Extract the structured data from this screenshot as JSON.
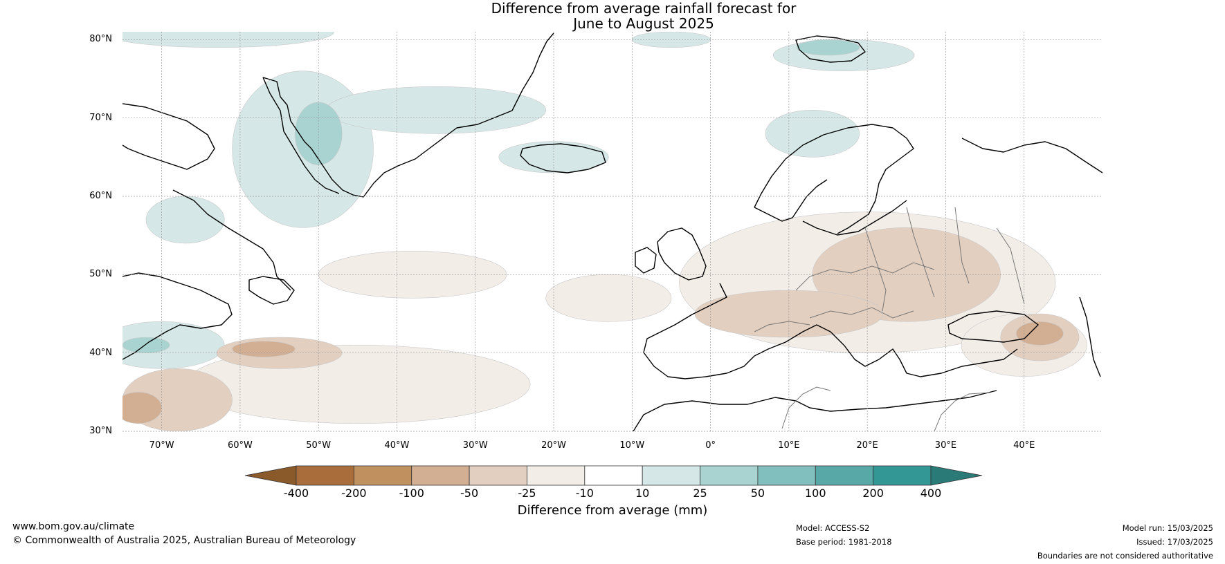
{
  "title": {
    "line1": "Difference from average rainfall forecast for",
    "line2": "June to August 2025"
  },
  "map": {
    "lon_range": [
      -75,
      50
    ],
    "lat_range": [
      30,
      81
    ],
    "latitude_labels": [
      {
        "lat": 80,
        "label": "80°N"
      },
      {
        "lat": 70,
        "label": "70°N"
      },
      {
        "lat": 60,
        "label": "60°N"
      },
      {
        "lat": 50,
        "label": "50°N"
      },
      {
        "lat": 40,
        "label": "40°N"
      },
      {
        "lat": 30,
        "label": "30°N"
      }
    ],
    "longitude_labels": [
      {
        "lon": -70,
        "label": "70°W"
      },
      {
        "lon": -60,
        "label": "60°W"
      },
      {
        "lon": -50,
        "label": "50°W"
      },
      {
        "lon": -40,
        "label": "40°W"
      },
      {
        "lon": -30,
        "label": "30°W"
      },
      {
        "lon": -20,
        "label": "20°W"
      },
      {
        "lon": -10,
        "label": "10°W"
      },
      {
        "lon": 0,
        "label": "0°"
      },
      {
        "lon": 10,
        "label": "10°E"
      },
      {
        "lon": 20,
        "label": "20°E"
      },
      {
        "lon": 30,
        "label": "30°E"
      },
      {
        "lon": 40,
        "label": "40°E"
      }
    ],
    "gridlines": true,
    "regions": [
      {
        "level": "10-25",
        "color": "#d5e8e7",
        "lon": -52,
        "lat": 66,
        "rlon": 9,
        "rlat": 10
      },
      {
        "level": "10-25",
        "color": "#d5e8e7",
        "lon": -35,
        "lat": 71,
        "rlon": 14,
        "rlat": 3
      },
      {
        "level": "10-25",
        "color": "#d5e8e7",
        "lon": -20,
        "lat": 65,
        "rlon": 7,
        "rlat": 2
      },
      {
        "level": "10-25",
        "color": "#d5e8e7",
        "lon": -67,
        "lat": 57,
        "rlon": 5,
        "rlat": 3
      },
      {
        "level": "10-25",
        "color": "#d5e8e7",
        "lon": -70,
        "lat": 41,
        "rlon": 8,
        "rlat": 3
      },
      {
        "level": "10-25",
        "color": "#d5e8e7",
        "lon": 17,
        "lat": 78,
        "rlon": 9,
        "rlat": 2
      },
      {
        "level": "10-25",
        "color": "#d5e8e7",
        "lon": 13,
        "lat": 68,
        "rlon": 6,
        "rlat": 3
      },
      {
        "level": "10-25",
        "color": "#d5e8e7",
        "lon": -63,
        "lat": 81,
        "rlon": 15,
        "rlat": 2
      },
      {
        "level": "10-25",
        "color": "#d5e8e7",
        "lon": -5,
        "lat": 80,
        "rlon": 5,
        "rlat": 1
      },
      {
        "level": "25-50",
        "color": "#a8d3d1",
        "lon": -50,
        "lat": 68,
        "rlon": 3,
        "rlat": 4
      },
      {
        "level": "25-50",
        "color": "#a8d3d1",
        "lon": 15,
        "lat": 79,
        "rlon": 4,
        "rlat": 1
      },
      {
        "level": "25-50",
        "color": "#a8d3d1",
        "lon": -72,
        "lat": 41,
        "rlon": 3,
        "rlat": 1
      },
      {
        "level": "-25--10",
        "color": "#f3ede8",
        "lon": 20,
        "lat": 49,
        "rlon": 24,
        "rlat": 9
      },
      {
        "level": "-25--10",
        "color": "#f3ede8",
        "lon": -38,
        "lat": 50,
        "rlon": 12,
        "rlat": 3
      },
      {
        "level": "-25--10",
        "color": "#f3ede8",
        "lon": -13,
        "lat": 47,
        "rlon": 8,
        "rlat": 3
      },
      {
        "level": "-25--10",
        "color": "#f3ede8",
        "lon": -45,
        "lat": 36,
        "rlon": 22,
        "rlat": 5
      },
      {
        "level": "-25--10",
        "color": "#f3ede8",
        "lon": 40,
        "lat": 41,
        "rlon": 8,
        "rlat": 4
      },
      {
        "level": "-50--25",
        "color": "#e3cfc0",
        "lon": 25,
        "lat": 50,
        "rlon": 12,
        "rlat": 6
      },
      {
        "level": "-50--25",
        "color": "#e3cfc0",
        "lon": 10,
        "lat": 45,
        "rlon": 12,
        "rlat": 3
      },
      {
        "level": "-50--25",
        "color": "#e3cfc0",
        "lon": -55,
        "lat": 40,
        "rlon": 8,
        "rlat": 2
      },
      {
        "level": "-50--25",
        "color": "#e3cfc0",
        "lon": -68,
        "lat": 34,
        "rlon": 7,
        "rlat": 4
      },
      {
        "level": "-50--25",
        "color": "#e3cfc0",
        "lon": 42,
        "lat": 42,
        "rlon": 5,
        "rlat": 3
      },
      {
        "level": "-100--50",
        "color": "#d2ae93",
        "lon": -57,
        "lat": 40.5,
        "rlon": 4,
        "rlat": 1
      },
      {
        "level": "-100--50",
        "color": "#d2ae93",
        "lon": 42,
        "lat": 42.5,
        "rlon": 3,
        "rlat": 1.5
      },
      {
        "level": "-100--50",
        "color": "#d2ae93",
        "lon": -73,
        "lat": 33,
        "rlon": 3,
        "rlat": 2
      }
    ]
  },
  "colorbar": {
    "labels": [
      "-400",
      "-200",
      "-100",
      "-50",
      "-25",
      "-10",
      "10",
      "25",
      "50",
      "100",
      "200",
      "400"
    ],
    "colors": [
      "#a86d3a",
      "#c1905f",
      "#d2ae93",
      "#e3cfc0",
      "#f3ede8",
      "#ffffff",
      "#d5e8e7",
      "#a8d3d1",
      "#80bfbd",
      "#59a8a8",
      "#339795"
    ],
    "under_color": "#8a5a2b",
    "over_color": "#2a7a78",
    "title": "Difference from average (mm)"
  },
  "footer": {
    "website": "www.bom.gov.au/climate",
    "copyright": "© Commonwealth of Australia 2025, Australian Bureau of Meteorology",
    "model": "Model: ACCESS-S2",
    "base_period": "Base period: 1981-2018",
    "model_run": "Model run: 15/03/2025",
    "issued": "Issued: 17/03/2025",
    "disclaimer": "Boundaries are not considered authoritative"
  }
}
